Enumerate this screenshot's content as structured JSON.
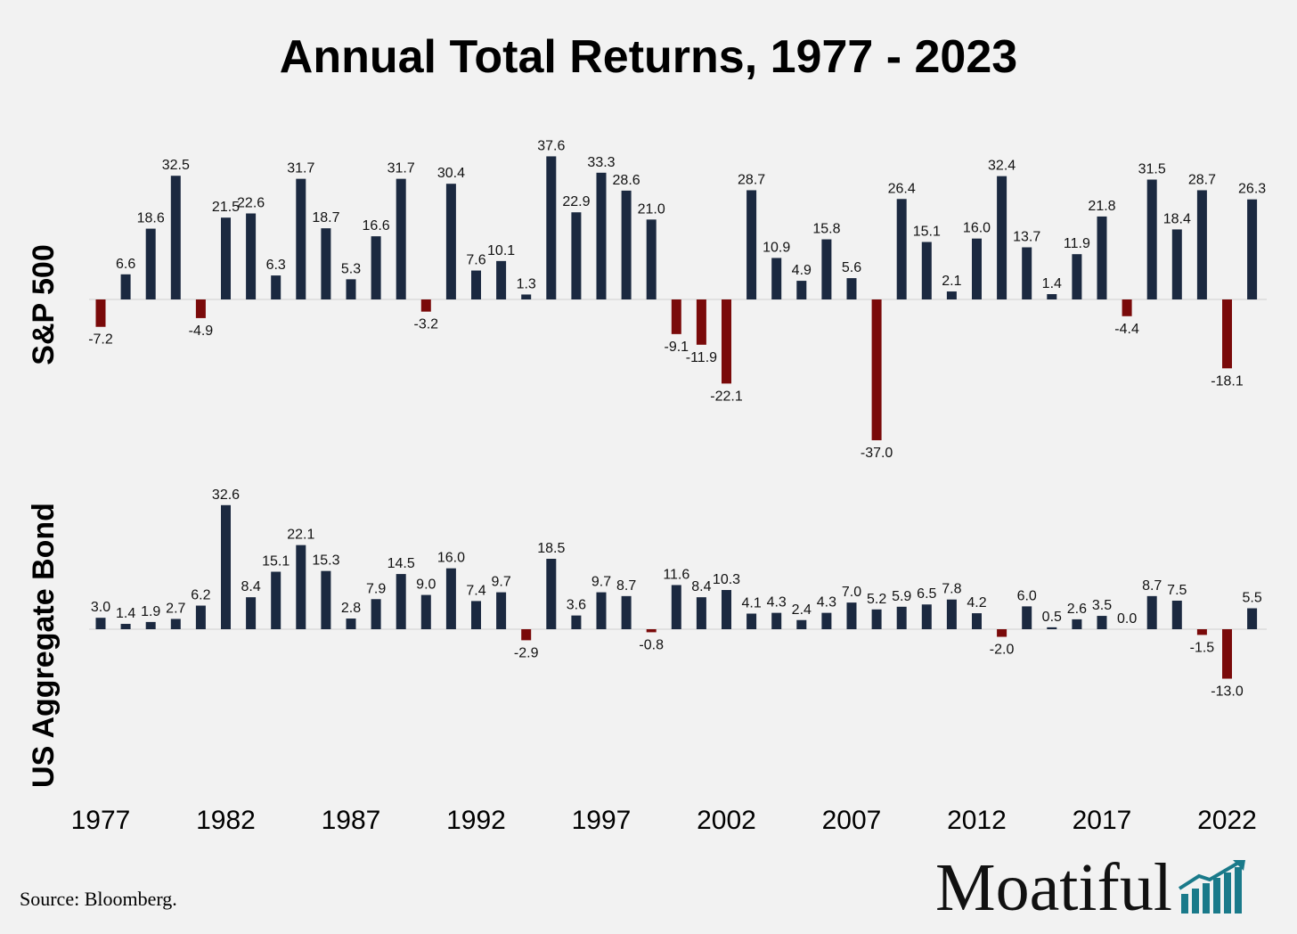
{
  "title": "Annual Total Returns, 1977 - 2023",
  "source": "Source: Bloomberg.",
  "brand": {
    "name": "Moatiful",
    "icon": "bar-growth-icon",
    "color": "#1a7a8a"
  },
  "colors": {
    "positive": "#1b2940",
    "negative": "#7a0a0a",
    "text": "#000000",
    "background": "#f2f2f2"
  },
  "chart_data": [
    {
      "type": "bar",
      "ylabel": "S&P 500",
      "x": [
        1977,
        1978,
        1979,
        1980,
        1981,
        1982,
        1983,
        1984,
        1985,
        1986,
        1987,
        1988,
        1989,
        1990,
        1991,
        1992,
        1993,
        1994,
        1995,
        1996,
        1997,
        1998,
        1999,
        2000,
        2001,
        2002,
        2003,
        2004,
        2005,
        2006,
        2007,
        2008,
        2009,
        2010,
        2011,
        2012,
        2013,
        2014,
        2015,
        2016,
        2017,
        2018,
        2019,
        2020,
        2021,
        2022,
        2023
      ],
      "values": [
        -7.2,
        6.6,
        18.6,
        32.5,
        -4.9,
        21.5,
        22.6,
        6.3,
        31.7,
        18.7,
        5.3,
        16.6,
        31.7,
        -3.2,
        30.4,
        7.6,
        10.1,
        1.3,
        37.6,
        22.9,
        33.3,
        28.6,
        21.0,
        -9.1,
        -11.9,
        -22.1,
        28.7,
        10.9,
        4.9,
        15.8,
        5.6,
        -37.0,
        26.4,
        15.1,
        2.1,
        16.0,
        32.4,
        13.7,
        1.4,
        11.9,
        21.8,
        -4.4,
        31.5,
        18.4,
        28.7,
        -18.1,
        26.3
      ],
      "labels": [
        "-7.2",
        "6.6",
        "18.6",
        "32.5",
        "-4.9",
        "21.5",
        "22.6",
        "6.3",
        "31.7",
        "18.7",
        "5.3",
        "16.6",
        "31.7",
        "-3.2",
        "30.4",
        "7.6",
        "10.1",
        "1.3",
        "37.6",
        "22.9",
        "33.3",
        "28.6",
        "21.0",
        "-9.1",
        "-11.9",
        "-22.1",
        "28.7",
        "10.9",
        "4.9",
        "15.8",
        "5.6",
        "-37.0",
        "26.4",
        "15.1",
        "2.1",
        "16.0",
        "32.4",
        "13.7",
        "1.4",
        "11.9",
        "21.8",
        "-4.4",
        "31.5",
        "18.4",
        "28.7",
        "-18.1",
        "26.3"
      ]
    },
    {
      "type": "bar",
      "ylabel": "US Aggregate Bond",
      "x": [
        1977,
        1978,
        1979,
        1980,
        1981,
        1982,
        1983,
        1984,
        1985,
        1986,
        1987,
        1988,
        1989,
        1990,
        1991,
        1992,
        1993,
        1994,
        1995,
        1996,
        1997,
        1998,
        1999,
        2000,
        2001,
        2002,
        2003,
        2004,
        2005,
        2006,
        2007,
        2008,
        2009,
        2010,
        2011,
        2012,
        2013,
        2014,
        2015,
        2016,
        2017,
        2018,
        2019,
        2020,
        2021,
        2022,
        2023
      ],
      "values": [
        3.0,
        1.4,
        1.9,
        2.7,
        6.2,
        32.6,
        8.4,
        15.1,
        22.1,
        15.3,
        2.8,
        7.9,
        14.5,
        9.0,
        16.0,
        7.4,
        9.7,
        -2.9,
        18.5,
        3.6,
        9.7,
        8.7,
        -0.8,
        11.6,
        8.4,
        10.3,
        4.1,
        4.3,
        2.4,
        4.3,
        7.0,
        5.2,
        5.9,
        6.5,
        7.8,
        4.2,
        -2.0,
        6.0,
        0.5,
        2.6,
        3.5,
        0.0,
        8.7,
        7.5,
        -1.5,
        -13.0,
        5.5
      ],
      "labels": [
        "3.0",
        "1.4",
        "1.9",
        "2.7",
        "6.2",
        "32.6",
        "8.4",
        "15.1",
        "22.1",
        "15.3",
        "2.8",
        "7.9",
        "14.5",
        "9.0",
        "16.0",
        "7.4",
        "9.7",
        "-2.9",
        "18.5",
        "3.6",
        "9.7",
        "8.7",
        "-0.8",
        "11.6",
        "8.4",
        "10.3",
        "4.1",
        "4.3",
        "2.4",
        "4.3",
        "7.0",
        "5.2",
        "5.9",
        "6.5",
        "7.8",
        "4.2",
        "-2.0",
        "6.0",
        "0.5",
        "2.6",
        "3.5",
        "0.0",
        "8.7",
        "7.5",
        "-1.5",
        "-13.0",
        "5.5"
      ]
    }
  ],
  "x_ticks": [
    "1977",
    "1982",
    "1987",
    "1992",
    "1997",
    "2002",
    "2007",
    "2012",
    "2017",
    "2022"
  ]
}
